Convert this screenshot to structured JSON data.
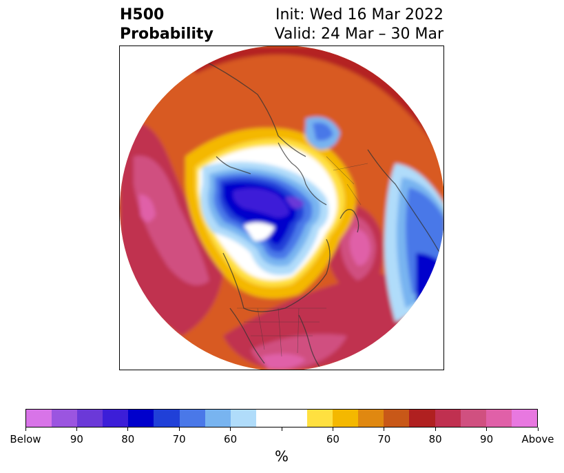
{
  "title": {
    "left_line1": "H500",
    "left_line2": "Probability",
    "right_line1": "Init: Wed 16 Mar 2022",
    "right_line2": "Valid: 24 Mar – 30 Mar"
  },
  "colorbar": {
    "colors": [
      "#d874e8",
      "#9b55e0",
      "#6b39d8",
      "#3c1ed8",
      "#0000cc",
      "#2040d8",
      "#4a78e8",
      "#78b4f0",
      "#b0dcfa",
      "#ffffff",
      "#ffffff",
      "#ffe040",
      "#f4b800",
      "#e08810",
      "#c85818",
      "#b02020",
      "#c03050",
      "#d05080",
      "#e060a8",
      "#e878e0"
    ],
    "tick_labels": [
      "Below",
      "90",
      "80",
      "70",
      "60",
      "",
      "60",
      "70",
      "80",
      "90",
      "Above"
    ],
    "unit": "%"
  },
  "map": {
    "projection": "polar-stereographic",
    "hemisphere": "north",
    "variable": "500 hPa height probability"
  }
}
